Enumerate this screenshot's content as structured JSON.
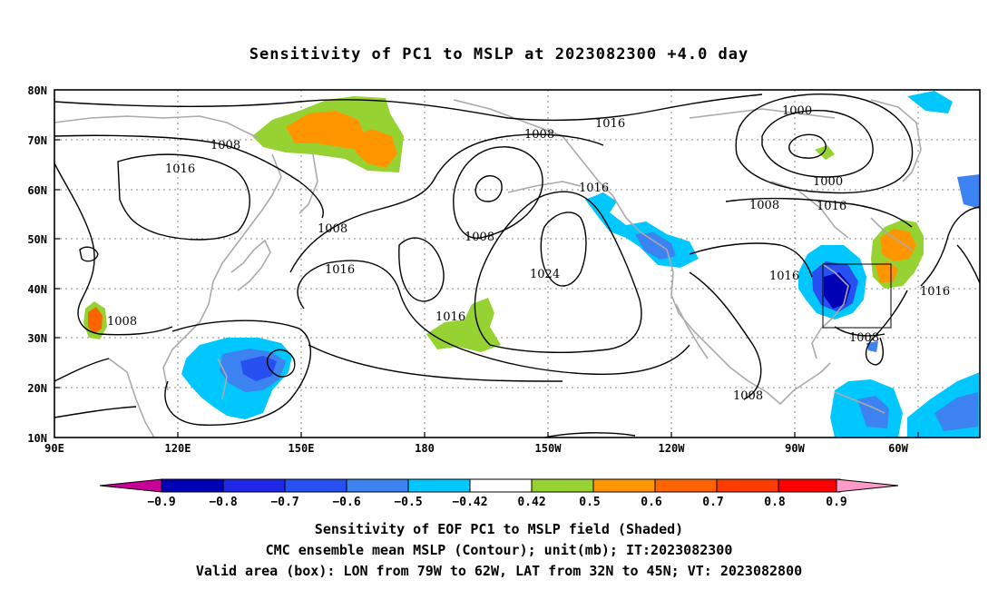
{
  "title": "Sensitivity of PC1 to MSLP at 2023082300 +4.0 day",
  "map": {
    "lat_labels": [
      "80N",
      "70N",
      "60N",
      "50N",
      "40N",
      "30N",
      "20N",
      "10N"
    ],
    "lon_labels": [
      "90E",
      "120E",
      "150E",
      "180",
      "150W",
      "120W",
      "90W",
      "60W"
    ],
    "contour_labels": [
      {
        "text": "1016"
      },
      {
        "text": "1008"
      },
      {
        "text": "1000"
      },
      {
        "text": "1000"
      },
      {
        "text": "1008"
      },
      {
        "text": "1016"
      },
      {
        "text": "1016"
      },
      {
        "text": "1008"
      },
      {
        "text": "1016"
      },
      {
        "text": "1008"
      },
      {
        "text": "1024"
      },
      {
        "text": "1016"
      },
      {
        "text": "1016"
      },
      {
        "text": "1008"
      },
      {
        "text": "1016"
      },
      {
        "text": "1016"
      },
      {
        "text": "1008"
      },
      {
        "text": "1008"
      },
      {
        "text": "1008"
      }
    ],
    "colors": {
      "coast": "#aaaaaa",
      "contour": "#000000"
    },
    "valid_box": {
      "lon_from": "79W",
      "lon_to": "62W",
      "lat_from": "32N",
      "lat_to": "45N"
    }
  },
  "colorbar": {
    "labels": [
      "−0.9",
      "−0.8",
      "−0.7",
      "−0.6",
      "−0.5",
      "−0.42",
      "0.42",
      "0.5",
      "0.6",
      "0.7",
      "0.8",
      "0.9"
    ],
    "colors": [
      "#0000b4",
      "#1e28e6",
      "#2850f0",
      "#3c82f0",
      "#00c8ff",
      "#ffffff",
      "#96d232",
      "#ff9600",
      "#ff6400",
      "#ff3c00",
      "#ff0000"
    ],
    "under_color": "#c80096",
    "over_color": "#ff9ac8"
  },
  "captions": {
    "line1": "Sensitivity of EOF PC1 to MSLP field (Shaded)",
    "line2": "CMC ensemble mean MSLP (Contour); unit(mb); IT:2023082300",
    "line3": "Valid area (box): LON from 79W to 62W, LAT from 32N to 45N; VT: 2023082800"
  }
}
